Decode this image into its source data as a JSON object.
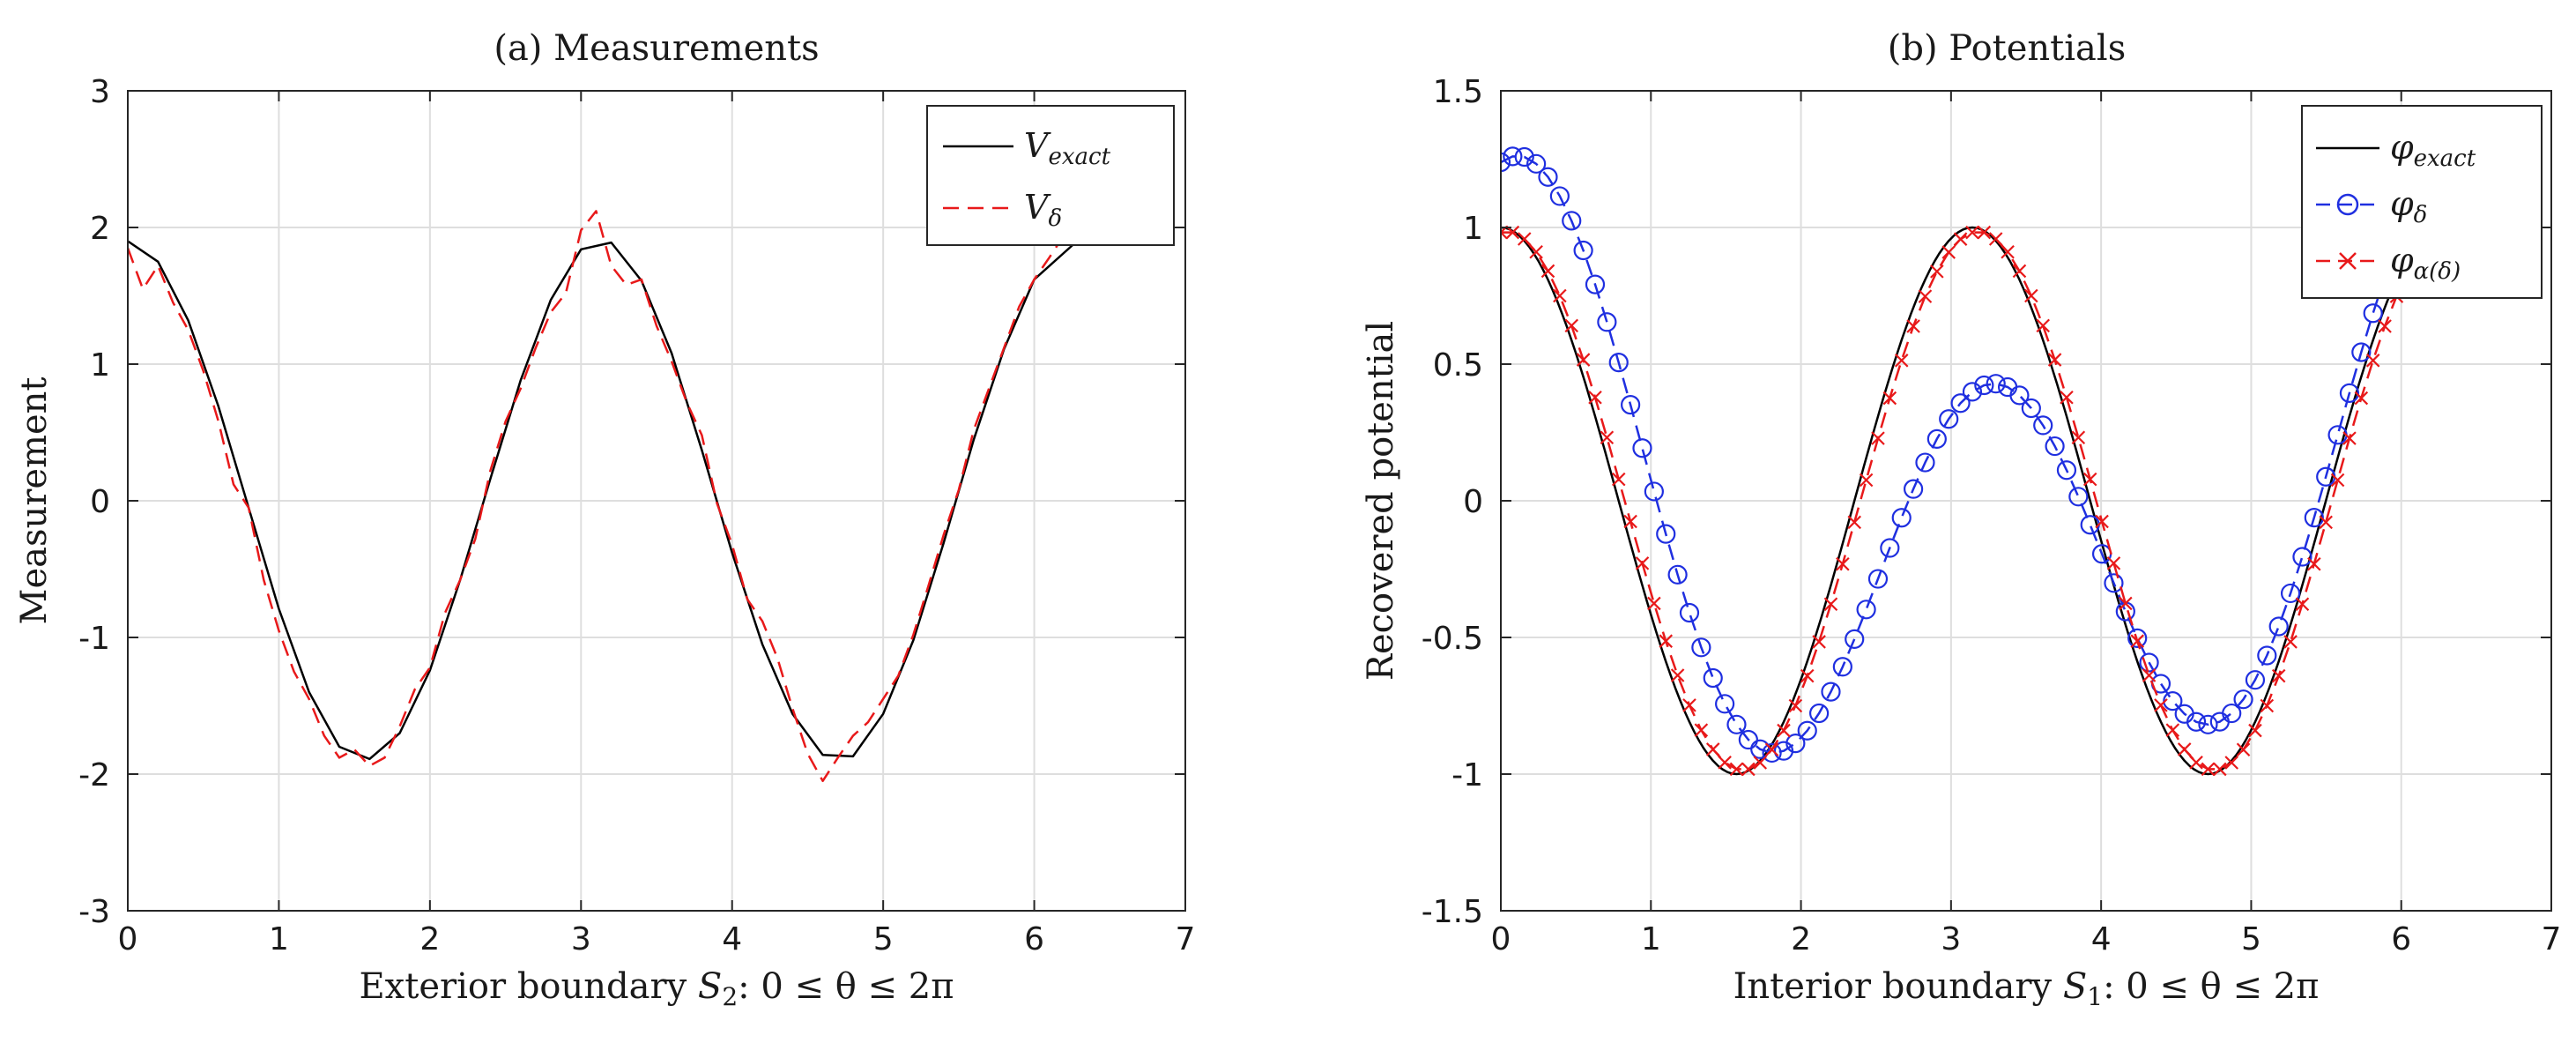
{
  "chart_data": [
    {
      "type": "line",
      "title": "(a) Measurements",
      "xlabel": {
        "prefix": "Exterior boundary ",
        "sym": "S",
        "sub": "2",
        "suffix": ": 0 ≤ θ ≤ 2π"
      },
      "ylabel": "Measurement",
      "xlim": [
        0,
        7
      ],
      "ylim": [
        -3,
        3
      ],
      "xticks": [
        0,
        1,
        2,
        3,
        4,
        5,
        6,
        7
      ],
      "yticks": [
        -3,
        -2,
        -1,
        0,
        1,
        2,
        3
      ],
      "grid": true,
      "legend_position": "top-right",
      "series": [
        {
          "name": "V",
          "name_sub": "exact",
          "color": "#000000",
          "style": "solid",
          "marker": "none",
          "x": [
            0,
            0.2,
            0.4,
            0.6,
            0.8,
            1.0,
            1.2,
            1.4,
            1.6,
            1.8,
            2.0,
            2.2,
            2.4,
            2.6,
            2.8,
            3.0,
            3.2,
            3.4,
            3.6,
            3.8,
            4.0,
            4.2,
            4.4,
            4.6,
            4.8,
            5.0,
            5.2,
            5.4,
            5.6,
            5.8,
            6.0,
            6.283
          ],
          "y": [
            1.9,
            1.75,
            1.32,
            0.69,
            -0.05,
            -0.79,
            -1.4,
            -1.8,
            -1.89,
            -1.7,
            -1.24,
            -0.58,
            0.16,
            0.88,
            1.47,
            1.84,
            1.89,
            1.61,
            1.08,
            0.37,
            -0.38,
            -1.05,
            -1.56,
            -1.86,
            -1.87,
            -1.56,
            -1.02,
            -0.31,
            0.45,
            1.11,
            1.62,
            1.9
          ]
        },
        {
          "name": "V",
          "name_sub": "δ",
          "color": "#e8191a",
          "style": "dashed",
          "marker": "none",
          "x": [
            0,
            0.1,
            0.2,
            0.3,
            0.4,
            0.5,
            0.6,
            0.7,
            0.8,
            0.9,
            1.0,
            1.1,
            1.2,
            1.3,
            1.4,
            1.5,
            1.6,
            1.7,
            1.8,
            1.9,
            2.0,
            2.1,
            2.2,
            2.3,
            2.4,
            2.5,
            2.6,
            2.7,
            2.8,
            2.9,
            3.0,
            3.1,
            3.2,
            3.3,
            3.4,
            3.5,
            3.6,
            3.7,
            3.8,
            3.9,
            4.0,
            4.1,
            4.2,
            4.3,
            4.4,
            4.5,
            4.6,
            4.7,
            4.8,
            4.9,
            5.0,
            5.1,
            5.2,
            5.3,
            5.4,
            5.5,
            5.6,
            5.7,
            5.8,
            5.9,
            6.0,
            6.1,
            6.2,
            6.283
          ],
          "y": [
            1.85,
            1.55,
            1.72,
            1.45,
            1.25,
            0.95,
            0.58,
            0.12,
            -0.05,
            -0.58,
            -0.95,
            -1.25,
            -1.45,
            -1.72,
            -1.88,
            -1.82,
            -1.94,
            -1.88,
            -1.65,
            -1.38,
            -1.22,
            -0.82,
            -0.58,
            -0.28,
            0.22,
            0.58,
            0.82,
            1.12,
            1.38,
            1.52,
            1.98,
            2.12,
            1.72,
            1.58,
            1.62,
            1.28,
            1.02,
            0.72,
            0.48,
            -0.02,
            -0.32,
            -0.72,
            -0.88,
            -1.15,
            -1.52,
            -1.85,
            -2.05,
            -1.88,
            -1.72,
            -1.62,
            -1.45,
            -1.28,
            -0.98,
            -0.62,
            -0.25,
            0.08,
            0.52,
            0.82,
            1.12,
            1.42,
            1.62,
            1.78,
            1.95,
            1.9
          ]
        }
      ]
    },
    {
      "type": "line",
      "title": "(b) Potentials",
      "xlabel": {
        "prefix": "Interior boundary ",
        "sym": "S",
        "sub": "1",
        "suffix": ": 0 ≤ θ ≤ 2π"
      },
      "ylabel": "Recovered potential",
      "xlim": [
        0,
        7
      ],
      "ylim": [
        -1.5,
        1.5
      ],
      "xticks": [
        0,
        1,
        2,
        3,
        4,
        5,
        6,
        7
      ],
      "yticks": [
        -1.5,
        -1,
        -0.5,
        0,
        0.5,
        1,
        1.5
      ],
      "grid": true,
      "legend_position": "top-right",
      "series": [
        {
          "name": "φ",
          "name_sub": "exact",
          "color": "#000000",
          "style": "solid",
          "marker": "none",
          "func": "cos2"
        },
        {
          "name": "φ",
          "name_sub": "δ",
          "color": "#1f2fe0",
          "style": "dashed",
          "marker": "circle",
          "func": "phi_delta"
        },
        {
          "name": "φ",
          "name_sub": "α(δ)",
          "color": "#e8191a",
          "style": "dashed",
          "marker": "x",
          "func": "phi_alpha"
        }
      ]
    }
  ]
}
